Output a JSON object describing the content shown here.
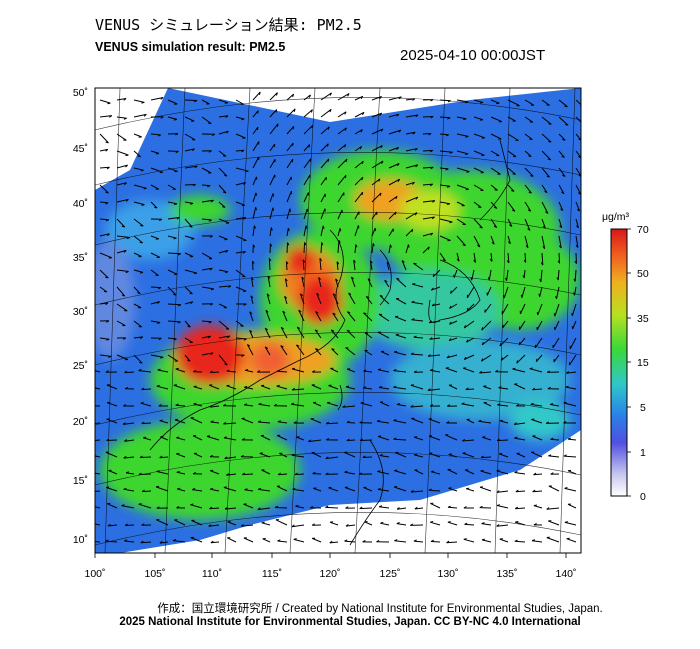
{
  "header": {
    "title_jp": "VENUS シミュレーション結果: PM2.5",
    "title_en": "VENUS simulation result: PM2.5",
    "timestamp": "2025-04-10 00:00JST"
  },
  "map": {
    "lon_ticks": [
      "100˚",
      "105˚",
      "110˚",
      "115˚",
      "120˚",
      "125˚",
      "130˚",
      "135˚",
      "140˚"
    ],
    "lat_ticks": [
      "50˚",
      "45˚",
      "40˚",
      "35˚",
      "30˚",
      "25˚",
      "20˚",
      "15˚",
      "10˚"
    ]
  },
  "colorbar": {
    "unit": "μg/m³",
    "labels": [
      "70",
      "50",
      "35",
      "15",
      "5",
      "1",
      "0"
    ]
  },
  "footer": {
    "line1": "作成：国立環境研究所 / Created by National Institute for Environmental Studies, Japan.",
    "line2": "2025 National Institute for Environmental Studies, Japan. CC BY-NC 4.0 International"
  },
  "colors": {
    "very_high": "#e8261a",
    "high": "#f0a020",
    "moderate": "#3ed62f",
    "low": "#2aa8e0",
    "very_low": "#4a60d8",
    "background_sea": "#2e6ee0"
  }
}
